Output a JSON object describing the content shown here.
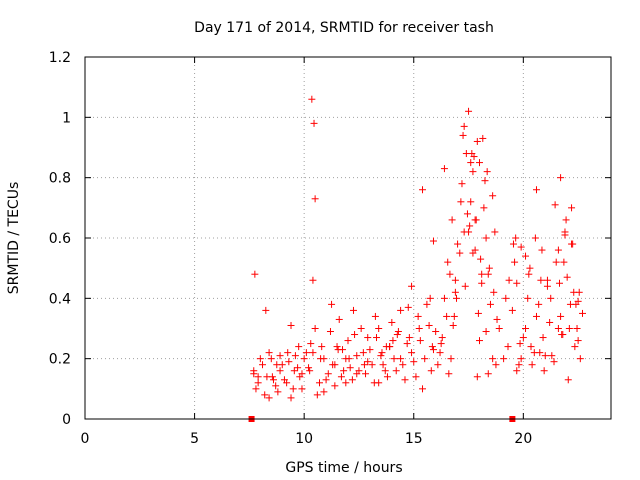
{
  "chart_data": {
    "type": "scatter",
    "title": "Day 171 of 2014, SRMTID for receiver tash",
    "xlabel": "GPS time / hours",
    "ylabel": "SRMTID / TECUs",
    "xlim": [
      0,
      24
    ],
    "ylim": [
      0,
      1.2
    ],
    "xticks": [
      0,
      5,
      10,
      15,
      20
    ],
    "yticks": [
      0,
      0.2,
      0.4,
      0.6,
      0.8,
      1,
      1.2
    ],
    "xtick_labels": [
      "0",
      "5",
      "10",
      "15",
      "20"
    ],
    "ytick_labels": [
      "0",
      "0.2",
      "0.4",
      "0.6",
      "0.8",
      "1",
      "1.2"
    ],
    "grid": true,
    "marker": "+",
    "color": "#ff0000",
    "series": [
      {
        "name": "SRMTID",
        "x": [
          7.7,
          7.9,
          8.1,
          8.3,
          8.5,
          8.7,
          8.9,
          9.1,
          9.3,
          9.5,
          9.7,
          9.9,
          10.1,
          10.3,
          10.4,
          10.5,
          10.7,
          10.9,
          11.1,
          11.3,
          11.5,
          11.7,
          11.9,
          12.1,
          12.3,
          12.5,
          12.7,
          12.9,
          13.1,
          13.3,
          13.5,
          13.7,
          13.9,
          14.1,
          14.3,
          14.5,
          14.7,
          14.9,
          15.1,
          15.3,
          15.5,
          15.7,
          15.9,
          16.1,
          16.3,
          16.5,
          16.7,
          16.9,
          17.0,
          17.2,
          17.4,
          17.5,
          17.6,
          17.8,
          18.0,
          18.1,
          18.3,
          18.5,
          18.7,
          18.9,
          19.1,
          19.3,
          19.5,
          19.7,
          19.9,
          20.1,
          20.3,
          20.5,
          20.7,
          20.9,
          21.1,
          21.3,
          21.5,
          21.7,
          21.9,
          22.1,
          22.3,
          22.5,
          22.7,
          7.8,
          8.0,
          8.2,
          8.4,
          8.6,
          8.8,
          9.0,
          9.2,
          9.4,
          9.6,
          9.8,
          10.0,
          10.2,
          10.6,
          10.8,
          11.0,
          11.2,
          11.4,
          11.6,
          11.8,
          12.0,
          12.2,
          12.4,
          12.6,
          12.8,
          13.0,
          13.2,
          13.4,
          13.6,
          13.8,
          14.0,
          14.2,
          14.4,
          14.6,
          14.8,
          15.0,
          15.2,
          15.4,
          15.6,
          15.8,
          16.0,
          16.2,
          16.4,
          16.6,
          16.8,
          17.1,
          17.3,
          17.7,
          17.9,
          18.2,
          18.4,
          18.6,
          18.8,
          19.6,
          19.8,
          20.0,
          20.2,
          20.4,
          20.6,
          20.8,
          21.0,
          21.2,
          21.4,
          21.6,
          21.8,
          22.0,
          22.2,
          22.4,
          22.6,
          7.75,
          8.25,
          8.75,
          9.25,
          9.75,
          10.25,
          10.75,
          11.25,
          11.75,
          12.25,
          12.75,
          13.25,
          13.75,
          14.25,
          14.75,
          15.25,
          15.75,
          16.25,
          16.75,
          17.25,
          17.45,
          17.65,
          17.85,
          18.05,
          18.25,
          18.45,
          18.65,
          19.65,
          19.85,
          20.25,
          20.75,
          21.25,
          21.75,
          22.05,
          22.35,
          7.7,
          7.9,
          8.4,
          8.9,
          9.4,
          9.9,
          10.4,
          10.9,
          11.4,
          11.9,
          12.4,
          12.9,
          13.4,
          13.9,
          14.4,
          14.9,
          15.4,
          15.9,
          16.4,
          16.9,
          17.3,
          17.5,
          17.7,
          17.9,
          18.1,
          18.3,
          19.7,
          20.1,
          20.6,
          21.1,
          21.6,
          21.9,
          22.2,
          22.5,
          10.35,
          10.45,
          10.5,
          17.55,
          17.75,
          17.95,
          18.15,
          17.35,
          17.6,
          18.0,
          18.4,
          18.6,
          18.75,
          19.2,
          19.35,
          19.55,
          20.35,
          20.55,
          20.85,
          21.45,
          21.65,
          21.85,
          22.15,
          22.45,
          16.55,
          16.65,
          16.85,
          15.85,
          14.05,
          13.55,
          12.05,
          11.55,
          9.55,
          8.55,
          16.95,
          17.15,
          17.8,
          18.35,
          21.95,
          21.7,
          22.25,
          22.55,
          20.95,
          19.9
        ],
        "y": [
          0.15,
          0.12,
          0.18,
          0.14,
          0.2,
          0.11,
          0.16,
          0.13,
          0.19,
          0.1,
          0.17,
          0.15,
          0.22,
          0.25,
          0.46,
          0.3,
          0.12,
          0.2,
          0.15,
          0.18,
          0.24,
          0.14,
          0.2,
          0.17,
          0.28,
          0.16,
          0.22,
          0.19,
          0.18,
          0.27,
          0.21,
          0.16,
          0.24,
          0.2,
          0.29,
          0.18,
          0.25,
          0.22,
          0.14,
          0.26,
          0.2,
          0.31,
          0.23,
          0.18,
          0.27,
          0.34,
          0.2,
          0.46,
          0.58,
          0.78,
          0.88,
          1.02,
          0.72,
          0.56,
          0.85,
          0.45,
          0.6,
          0.38,
          0.62,
          0.3,
          0.2,
          0.24,
          0.36,
          0.45,
          0.2,
          0.3,
          0.5,
          0.22,
          0.38,
          0.27,
          0.44,
          0.21,
          0.52,
          0.34,
          0.62,
          0.3,
          0.42,
          0.26,
          0.35,
          0.1,
          0.2,
          0.08,
          0.22,
          0.13,
          0.09,
          0.18,
          0.12,
          0.07,
          0.21,
          0.14,
          0.2,
          0.17,
          0.08,
          0.24,
          0.13,
          0.29,
          0.11,
          0.33,
          0.16,
          0.26,
          0.13,
          0.21,
          0.3,
          0.15,
          0.23,
          0.12,
          0.3,
          0.18,
          0.14,
          0.32,
          0.16,
          0.36,
          0.13,
          0.27,
          0.19,
          0.34,
          0.1,
          0.38,
          0.16,
          0.29,
          0.22,
          0.4,
          0.15,
          0.31,
          0.55,
          0.62,
          0.82,
          0.92,
          0.7,
          0.48,
          0.74,
          0.33,
          0.52,
          0.18,
          0.27,
          0.4,
          0.18,
          0.34,
          0.46,
          0.21,
          0.32,
          0.19,
          0.56,
          0.28,
          0.47,
          0.7,
          0.38,
          0.2,
          0.48,
          0.36,
          0.18,
          0.22,
          0.24,
          0.16,
          0.2,
          0.38,
          0.23,
          0.36,
          0.18,
          0.34,
          0.24,
          0.28,
          0.37,
          0.3,
          0.4,
          0.25,
          0.66,
          0.94,
          0.68,
          0.88,
          0.66,
          0.53,
          0.79,
          0.5,
          0.42,
          0.6,
          0.25,
          0.48,
          0.22,
          0.4,
          0.28,
          0.13,
          0.24,
          0.16,
          0.14,
          0.07,
          0.21,
          0.31,
          0.1,
          0.22,
          0.09,
          0.18,
          0.12,
          0.15,
          0.27,
          0.12,
          0.24,
          0.2,
          0.44,
          0.76,
          0.59,
          0.83,
          0.42,
          0.97,
          0.62,
          0.55,
          0.14,
          0.48,
          0.29,
          0.16,
          0.54,
          0.76,
          0.46,
          0.3,
          0.61,
          0.58,
          0.39,
          1.06,
          0.98,
          0.73,
          0.64,
          0.87,
          0.35,
          0.93,
          0.44,
          0.85,
          0.26,
          0.15,
          0.2,
          0.18,
          0.4,
          0.46,
          0.58,
          0.24,
          0.6,
          0.56,
          0.71,
          0.45,
          0.52,
          0.38,
          0.3,
          0.52,
          0.48,
          0.34,
          0.24,
          0.26,
          0.22,
          0.2,
          0.23,
          0.16,
          0.14,
          0.4,
          0.72,
          0.66,
          0.82,
          0.66,
          0.8,
          0.58,
          0.42,
          0.16,
          0.57
        ]
      }
    ],
    "axis_markers_x": [
      7.6,
      19.5
    ]
  }
}
